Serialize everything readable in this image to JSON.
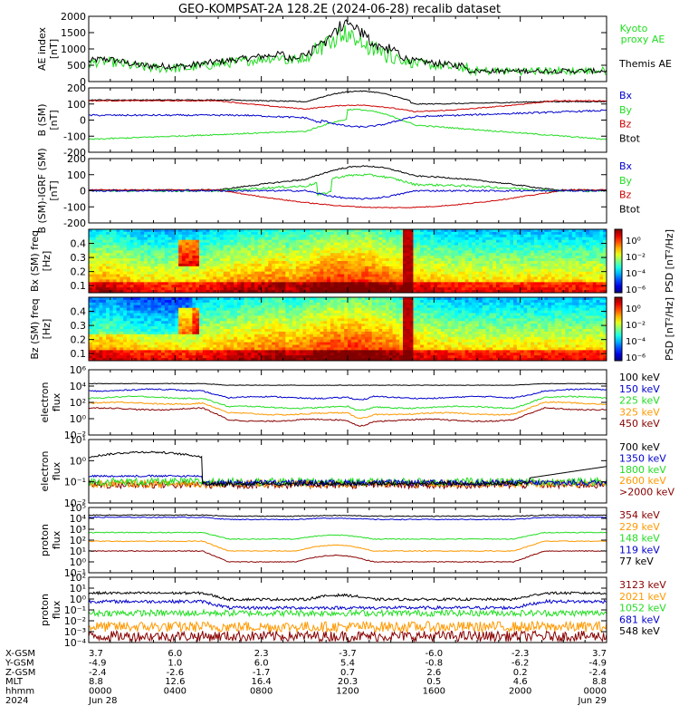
{
  "title": "GEO-KOMPSAT-2A 128.2E (2024-06-28) recalib dataset",
  "colors": {
    "black": "#000000",
    "blue": "#0000cc",
    "green": "#22dd22",
    "red": "#cc0000",
    "orange": "#ff9900",
    "darkred": "#880000"
  },
  "chart_data": [
    {
      "id": "ae",
      "type": "line",
      "ylabel": "AE index [nT]",
      "yticks": [
        "2000",
        "1500",
        "1000",
        "500",
        "0"
      ],
      "ylim": [
        0,
        2000
      ],
      "legend": [
        {
          "label": "Kyoto proxy AE",
          "color": "#22dd22"
        },
        {
          "label": "Themis AE",
          "color": "#000000"
        }
      ]
    },
    {
      "id": "bsm",
      "type": "line",
      "ylabel": "B (SM) [nT]",
      "yticks": [
        "200",
        "100",
        "0",
        "-100",
        "-200"
      ],
      "ylim": [
        -200,
        200
      ],
      "legend": [
        {
          "label": "Bx",
          "color": "#0000cc"
        },
        {
          "label": "By",
          "color": "#22dd22"
        },
        {
          "label": "Bz",
          "color": "#cc0000"
        },
        {
          "label": "Btot",
          "color": "#000000"
        }
      ]
    },
    {
      "id": "bdiff",
      "type": "line",
      "ylabel": "B (SM)-IGRF (SM) [nT]",
      "yticks": [
        "200",
        "100",
        "0",
        "-100",
        "-200"
      ],
      "ylim": [
        -200,
        200
      ],
      "legend": [
        {
          "label": "Bx",
          "color": "#0000cc"
        },
        {
          "label": "By",
          "color": "#22dd22"
        },
        {
          "label": "Bz",
          "color": "#cc0000"
        },
        {
          "label": "Btot",
          "color": "#000000"
        }
      ]
    },
    {
      "id": "bxspec",
      "type": "heatmap",
      "ylabel": "Bx (SM) freq [Hz]",
      "yticks": [
        "0.4",
        "0.3",
        "0.2",
        "0.1"
      ],
      "ylim": [
        0.05,
        0.5
      ],
      "colorbar": {
        "label": "PSD [nT²/Hz]",
        "ticks": [
          "10⁰",
          "10⁻²",
          "10⁻⁴",
          "10⁻⁶"
        ]
      }
    },
    {
      "id": "bzspec",
      "type": "heatmap",
      "ylabel": "Bz (SM) freq [Hz]",
      "yticks": [
        "0.4",
        "0.3",
        "0.2",
        "0.1"
      ],
      "ylim": [
        0.05,
        0.5
      ],
      "colorbar": {
        "label": "PSD [nT²/Hz]",
        "ticks": [
          "10⁰",
          "10⁻²",
          "10⁻⁴",
          "10⁻⁶"
        ]
      }
    },
    {
      "id": "eflux1",
      "type": "line",
      "ylabel": "electron flux",
      "log": true,
      "yticks": [
        "10⁶",
        "10⁴",
        "10²",
        "10⁰",
        "10⁻²"
      ],
      "legend": [
        {
          "label": "100 keV",
          "color": "#000000"
        },
        {
          "label": "150 keV",
          "color": "#0000cc"
        },
        {
          "label": "225 keV",
          "color": "#22dd22"
        },
        {
          "label": "325 keV",
          "color": "#ff9900"
        },
        {
          "label": "450 keV",
          "color": "#880000"
        }
      ]
    },
    {
      "id": "eflux2",
      "type": "line",
      "ylabel": "electron flux",
      "log": true,
      "yticks": [
        "10¹",
        "10⁰",
        "10⁻¹",
        "10⁻²"
      ],
      "legend": [
        {
          "label": "700 keV",
          "color": "#000000"
        },
        {
          "label": "1350 keV",
          "color": "#0000cc"
        },
        {
          "label": "1800 keV",
          "color": "#22dd22"
        },
        {
          "label": "2600 keV",
          "color": "#ff9900"
        },
        {
          "label": ">2000 keV",
          "color": "#880000"
        }
      ]
    },
    {
      "id": "pflux1",
      "type": "line",
      "ylabel": "proton flux",
      "log": true,
      "yticks": [
        "10⁵",
        "10⁴",
        "10³",
        "10²",
        "10¹",
        "10⁰",
        "10⁻¹"
      ],
      "legend": [
        {
          "label": "354 keV",
          "color": "#880000"
        },
        {
          "label": "229 keV",
          "color": "#ff9900"
        },
        {
          "label": "148 keV",
          "color": "#22dd22"
        },
        {
          "label": "119 keV",
          "color": "#0000cc"
        },
        {
          "label": "77 keV",
          "color": "#000000"
        }
      ]
    },
    {
      "id": "pflux2",
      "type": "line",
      "ylabel": "proton flux",
      "log": true,
      "yticks": [
        "10²",
        "10¹",
        "10⁰",
        "10⁻¹",
        "10⁻²",
        "10⁻³",
        "10⁻⁴"
      ],
      "legend": [
        {
          "label": "3123 keV",
          "color": "#880000"
        },
        {
          "label": "2021 keV",
          "color": "#ff9900"
        },
        {
          "label": "1052 keV",
          "color": "#22dd22"
        },
        {
          "label": "681 keV",
          "color": "#0000cc"
        },
        {
          "label": "548 keV",
          "color": "#000000"
        }
      ]
    }
  ],
  "xaxis": {
    "row_labels": [
      "X-GSM",
      "Y-GSM",
      "Z-GSM",
      "MLT",
      "hhmm",
      "2024"
    ],
    "columns": [
      [
        "3.7",
        "-4.9",
        "-2.4",
        "8.8",
        "0000",
        "Jun 28"
      ],
      [
        "6.0",
        "1.0",
        "-2.6",
        "12.6",
        "0400",
        ""
      ],
      [
        "2.3",
        "6.0",
        "-1.7",
        "16.4",
        "0800",
        ""
      ],
      [
        "-3.7",
        "5.4",
        "0.7",
        "20.3",
        "1200",
        ""
      ],
      [
        "-6.0",
        "-0.8",
        "2.6",
        "0.5",
        "1600",
        ""
      ],
      [
        "-2.3",
        "-6.2",
        "0.2",
        "4.6",
        "2000",
        ""
      ],
      [
        "3.7",
        "-4.9",
        "-2.4",
        "8.8",
        "0000",
        "Jun 29"
      ]
    ]
  }
}
